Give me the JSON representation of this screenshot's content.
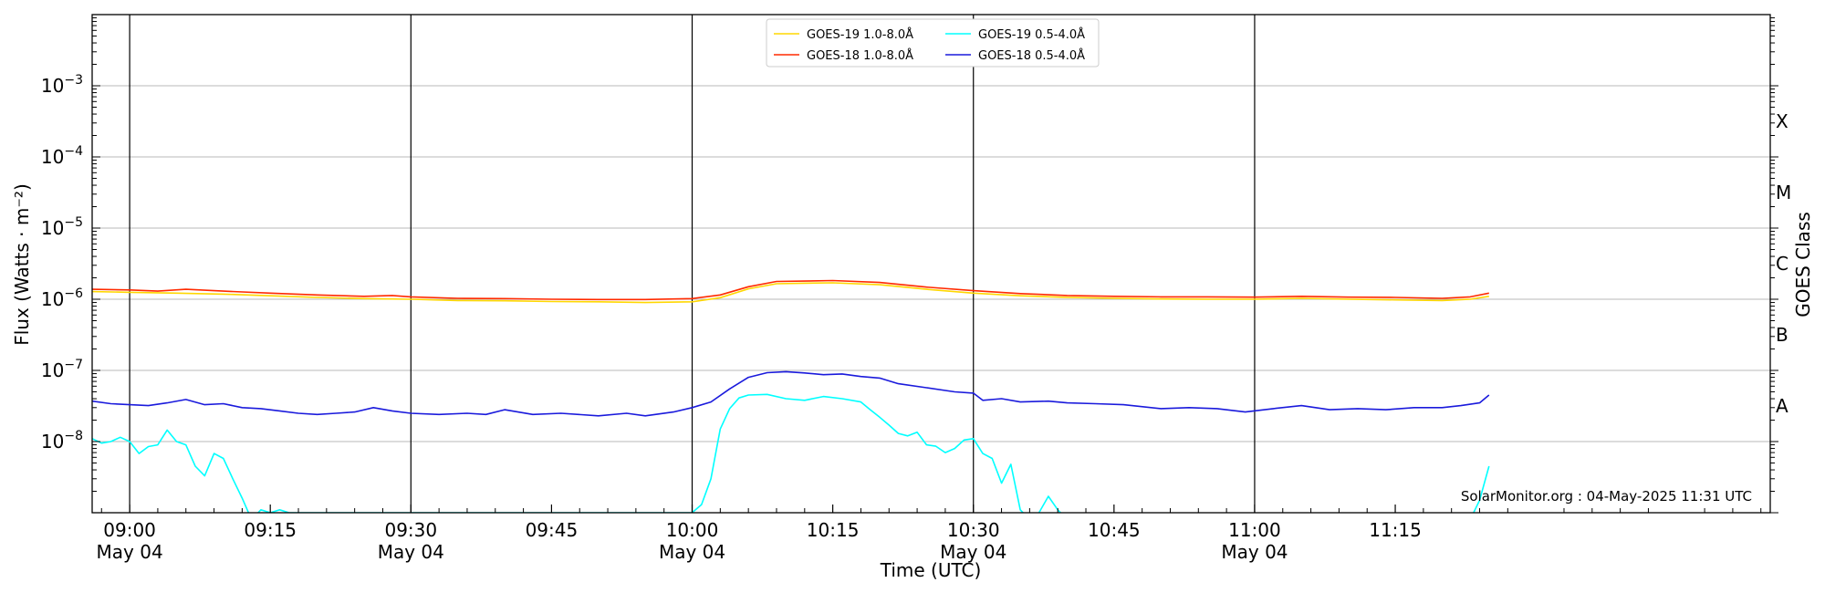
{
  "chart_data": {
    "type": "line",
    "xlabel": "Time (UTC)",
    "ylabel": "Flux (Watts · m⁻²)",
    "y2label": "GOES Class",
    "yscale": "log",
    "xlim": [
      "08:56",
      "11:55"
    ],
    "ylim": [
      1e-09,
      0.01
    ],
    "grid": "horizontal gridlines at each decade; vertical lines every 30 minutes",
    "legend_position": "top-center",
    "credit": "SolarMonitor.org : 04-May-2025 11:31 UTC",
    "x_ticks": [
      {
        "time": "09:00",
        "label": "09:00",
        "sublabel": "May 04",
        "major": true
      },
      {
        "time": "09:15",
        "label": "09:15",
        "sublabel": "",
        "major": false
      },
      {
        "time": "09:30",
        "label": "09:30",
        "sublabel": "May 04",
        "major": true
      },
      {
        "time": "09:45",
        "label": "09:45",
        "sublabel": "",
        "major": false
      },
      {
        "time": "10:00",
        "label": "10:00",
        "sublabel": "May 04",
        "major": true
      },
      {
        "time": "10:15",
        "label": "10:15",
        "sublabel": "",
        "major": false
      },
      {
        "time": "10:30",
        "label": "10:30",
        "sublabel": "May 04",
        "major": true
      },
      {
        "time": "10:45",
        "label": "10:45",
        "sublabel": "",
        "major": false
      },
      {
        "time": "11:00",
        "label": "11:00",
        "sublabel": "May 04",
        "major": true
      },
      {
        "time": "11:15",
        "label": "11:15",
        "sublabel": "",
        "major": false
      }
    ],
    "y_ticks": [
      {
        "value": 1e-08,
        "mantissa": "10",
        "exponent": "−8"
      },
      {
        "value": 1e-07,
        "mantissa": "10",
        "exponent": "−7"
      },
      {
        "value": 1e-06,
        "mantissa": "10",
        "exponent": "−6"
      },
      {
        "value": 1e-05,
        "mantissa": "10",
        "exponent": "−5"
      },
      {
        "value": 0.0001,
        "mantissa": "10",
        "exponent": "−4"
      },
      {
        "value": 0.001,
        "mantissa": "10",
        "exponent": "−3"
      }
    ],
    "goes_classes": [
      {
        "label": "A",
        "value": 1e-08
      },
      {
        "label": "B",
        "value": 1e-07
      },
      {
        "label": "C",
        "value": 1e-06
      },
      {
        "label": "M",
        "value": 1e-05
      },
      {
        "label": "X",
        "value": 0.0001
      }
    ],
    "series": [
      {
        "name": "GOES-19 1.0-8.0Å",
        "color": "#ffd700",
        "points": [
          [
            "08:56",
            1.28e-06
          ],
          [
            "09:00",
            1.25e-06
          ],
          [
            "09:05",
            1.22e-06
          ],
          [
            "09:10",
            1.18e-06
          ],
          [
            "09:15",
            1.12e-06
          ],
          [
            "09:20",
            1.06e-06
          ],
          [
            "09:25",
            1.02e-06
          ],
          [
            "09:30",
            1e-06
          ],
          [
            "09:35",
            9.6e-07
          ],
          [
            "09:40",
            9.5e-07
          ],
          [
            "09:45",
            9.3e-07
          ],
          [
            "09:50",
            9.2e-07
          ],
          [
            "09:55",
            9e-07
          ],
          [
            "10:00",
            9.2e-07
          ],
          [
            "10:03",
            1.05e-06
          ],
          [
            "10:06",
            1.4e-06
          ],
          [
            "10:09",
            1.65e-06
          ],
          [
            "10:12",
            1.68e-06
          ],
          [
            "10:15",
            1.7e-06
          ],
          [
            "10:20",
            1.6e-06
          ],
          [
            "10:25",
            1.38e-06
          ],
          [
            "10:30",
            1.22e-06
          ],
          [
            "10:35",
            1.12e-06
          ],
          [
            "10:40",
            1.06e-06
          ],
          [
            "10:45",
            1.03e-06
          ],
          [
            "10:50",
            1.01e-06
          ],
          [
            "10:55",
            1e-06
          ],
          [
            "11:00",
            1e-06
          ],
          [
            "11:05",
            1.03e-06
          ],
          [
            "11:10",
            1e-06
          ],
          [
            "11:15",
            9.8e-07
          ],
          [
            "11:20",
            9.6e-07
          ],
          [
            "11:23",
            1e-06
          ],
          [
            "11:25",
            1.1e-06
          ]
        ]
      },
      {
        "name": "GOES-18 1.0-8.0Å",
        "color": "#ff2a00",
        "points": [
          [
            "08:56",
            1.38e-06
          ],
          [
            "09:00",
            1.35e-06
          ],
          [
            "09:03",
            1.3e-06
          ],
          [
            "09:06",
            1.38e-06
          ],
          [
            "09:10",
            1.3e-06
          ],
          [
            "09:15",
            1.22e-06
          ],
          [
            "09:20",
            1.15e-06
          ],
          [
            "09:25",
            1.1e-06
          ],
          [
            "09:28",
            1.13e-06
          ],
          [
            "09:30",
            1.08e-06
          ],
          [
            "09:35",
            1.03e-06
          ],
          [
            "09:40",
            1.02e-06
          ],
          [
            "09:45",
            1e-06
          ],
          [
            "09:50",
            9.9e-07
          ],
          [
            "09:55",
            9.9e-07
          ],
          [
            "10:00",
            1.02e-06
          ],
          [
            "10:03",
            1.15e-06
          ],
          [
            "10:06",
            1.5e-06
          ],
          [
            "10:09",
            1.78e-06
          ],
          [
            "10:12",
            1.8e-06
          ],
          [
            "10:15",
            1.83e-06
          ],
          [
            "10:20",
            1.72e-06
          ],
          [
            "10:25",
            1.48e-06
          ],
          [
            "10:30",
            1.32e-06
          ],
          [
            "10:35",
            1.2e-06
          ],
          [
            "10:40",
            1.13e-06
          ],
          [
            "10:45",
            1.1e-06
          ],
          [
            "10:50",
            1.08e-06
          ],
          [
            "10:55",
            1.08e-06
          ],
          [
            "11:00",
            1.07e-06
          ],
          [
            "11:05",
            1.1e-06
          ],
          [
            "11:10",
            1.07e-06
          ],
          [
            "11:15",
            1.06e-06
          ],
          [
            "11:20",
            1.03e-06
          ],
          [
            "11:23",
            1.08e-06
          ],
          [
            "11:25",
            1.22e-06
          ]
        ]
      },
      {
        "name": "GOES-19 0.5-4.0Å",
        "color": "#00ffff",
        "points": [
          [
            "08:56",
            1.1e-08
          ],
          [
            "08:57",
            9.5e-09
          ],
          [
            "08:58",
            1e-08
          ],
          [
            "08:59",
            1.15e-08
          ],
          [
            "09:00",
            1e-08
          ],
          [
            "09:01",
            6.8e-09
          ],
          [
            "09:02",
            8.5e-09
          ],
          [
            "09:03",
            9e-09
          ],
          [
            "09:04",
            1.45e-08
          ],
          [
            "09:05",
            1e-08
          ],
          [
            "09:06",
            9e-09
          ],
          [
            "09:07",
            4.5e-09
          ],
          [
            "09:08",
            3.3e-09
          ],
          [
            "09:09",
            6.8e-09
          ],
          [
            "09:10",
            5.8e-09
          ],
          [
            "09:11",
            3e-09
          ],
          [
            "09:12",
            1.6e-09
          ],
          [
            "09:13",
            8e-10
          ],
          [
            "09:14",
            1.1e-09
          ],
          [
            "09:15",
            1e-09
          ],
          [
            "09:16",
            1.1e-09
          ],
          [
            "09:17",
            1e-09
          ],
          [
            "10:00",
            1e-09
          ],
          [
            "10:01",
            1.3e-09
          ],
          [
            "10:02",
            3e-09
          ],
          [
            "10:03",
            1.5e-08
          ],
          [
            "10:04",
            2.9e-08
          ],
          [
            "10:05",
            4.1e-08
          ],
          [
            "10:06",
            4.5e-08
          ],
          [
            "10:08",
            4.6e-08
          ],
          [
            "10:10",
            4e-08
          ],
          [
            "10:12",
            3.8e-08
          ],
          [
            "10:14",
            4.3e-08
          ],
          [
            "10:16",
            4e-08
          ],
          [
            "10:18",
            3.6e-08
          ],
          [
            "10:19",
            2.8e-08
          ],
          [
            "10:20",
            2.2e-08
          ],
          [
            "10:21",
            1.7e-08
          ],
          [
            "10:22",
            1.3e-08
          ],
          [
            "10:23",
            1.2e-08
          ],
          [
            "10:24",
            1.35e-08
          ],
          [
            "10:25",
            9e-09
          ],
          [
            "10:26",
            8.6e-09
          ],
          [
            "10:27",
            7e-09
          ],
          [
            "10:28",
            8e-09
          ],
          [
            "10:29",
            1.05e-08
          ],
          [
            "10:30",
            1.1e-08
          ],
          [
            "10:31",
            6.8e-09
          ],
          [
            "10:32",
            5.8e-09
          ],
          [
            "10:33",
            2.6e-09
          ],
          [
            "10:34",
            4.8e-09
          ],
          [
            "10:35",
            1.1e-09
          ],
          [
            "10:36",
            8e-10
          ],
          [
            "10:37",
            1e-09
          ],
          [
            "10:38",
            1.7e-09
          ],
          [
            "10:39",
            1.1e-09
          ],
          [
            "10:40",
            8e-10
          ],
          [
            "11:23",
            8e-10
          ],
          [
            "11:24",
            1.5e-09
          ],
          [
            "11:25",
            4.5e-09
          ]
        ]
      },
      {
        "name": "GOES-18 0.5-4.0Å",
        "color": "#1a1adc",
        "points": [
          [
            "08:56",
            3.7e-08
          ],
          [
            "08:58",
            3.4e-08
          ],
          [
            "09:00",
            3.3e-08
          ],
          [
            "09:02",
            3.2e-08
          ],
          [
            "09:04",
            3.5e-08
          ],
          [
            "09:06",
            3.9e-08
          ],
          [
            "09:08",
            3.3e-08
          ],
          [
            "09:10",
            3.4e-08
          ],
          [
            "09:12",
            3e-08
          ],
          [
            "09:14",
            2.9e-08
          ],
          [
            "09:16",
            2.7e-08
          ],
          [
            "09:18",
            2.5e-08
          ],
          [
            "09:20",
            2.4e-08
          ],
          [
            "09:22",
            2.5e-08
          ],
          [
            "09:24",
            2.6e-08
          ],
          [
            "09:26",
            3e-08
          ],
          [
            "09:28",
            2.7e-08
          ],
          [
            "09:30",
            2.5e-08
          ],
          [
            "09:33",
            2.4e-08
          ],
          [
            "09:36",
            2.5e-08
          ],
          [
            "09:38",
            2.4e-08
          ],
          [
            "09:40",
            2.8e-08
          ],
          [
            "09:43",
            2.4e-08
          ],
          [
            "09:46",
            2.5e-08
          ],
          [
            "09:50",
            2.3e-08
          ],
          [
            "09:53",
            2.5e-08
          ],
          [
            "09:55",
            2.3e-08
          ],
          [
            "09:58",
            2.6e-08
          ],
          [
            "10:00",
            3e-08
          ],
          [
            "10:02",
            3.6e-08
          ],
          [
            "10:04",
            5.5e-08
          ],
          [
            "10:06",
            8e-08
          ],
          [
            "10:08",
            9.3e-08
          ],
          [
            "10:10",
            9.6e-08
          ],
          [
            "10:12",
            9.2e-08
          ],
          [
            "10:14",
            8.7e-08
          ],
          [
            "10:16",
            8.9e-08
          ],
          [
            "10:18",
            8.2e-08
          ],
          [
            "10:20",
            7.8e-08
          ],
          [
            "10:22",
            6.5e-08
          ],
          [
            "10:25",
            5.7e-08
          ],
          [
            "10:28",
            5e-08
          ],
          [
            "10:30",
            4.8e-08
          ],
          [
            "10:31",
            3.8e-08
          ],
          [
            "10:33",
            4e-08
          ],
          [
            "10:35",
            3.6e-08
          ],
          [
            "10:38",
            3.7e-08
          ],
          [
            "10:40",
            3.5e-08
          ],
          [
            "10:43",
            3.4e-08
          ],
          [
            "10:46",
            3.3e-08
          ],
          [
            "10:50",
            2.9e-08
          ],
          [
            "10:53",
            3e-08
          ],
          [
            "10:56",
            2.9e-08
          ],
          [
            "10:59",
            2.6e-08
          ],
          [
            "11:02",
            2.9e-08
          ],
          [
            "11:05",
            3.2e-08
          ],
          [
            "11:08",
            2.8e-08
          ],
          [
            "11:11",
            2.9e-08
          ],
          [
            "11:14",
            2.8e-08
          ],
          [
            "11:17",
            3e-08
          ],
          [
            "11:20",
            3e-08
          ],
          [
            "11:22",
            3.2e-08
          ],
          [
            "11:24",
            3.5e-08
          ],
          [
            "11:25",
            4.5e-08
          ]
        ]
      }
    ]
  }
}
